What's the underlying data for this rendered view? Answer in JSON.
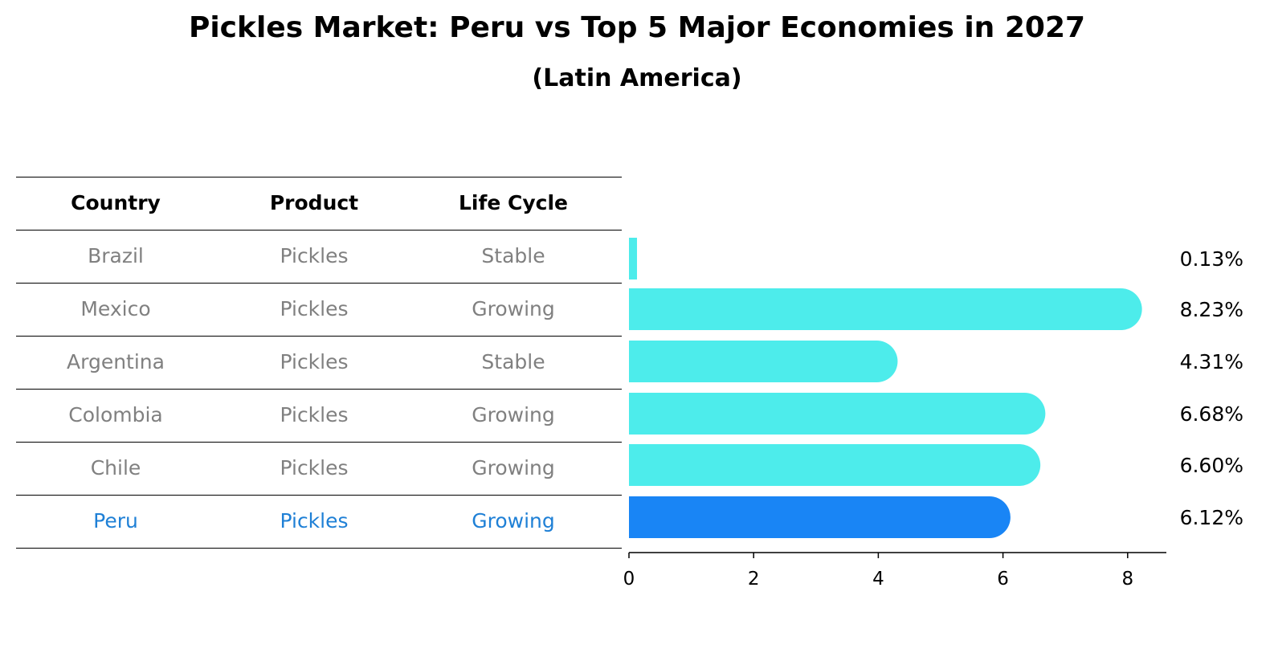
{
  "title": "Pickles Market: Peru vs Top 5 Major Economies in 2027",
  "subtitle": "(Latin America)",
  "table": {
    "headers": [
      "Country",
      "Product",
      "Life Cycle"
    ],
    "rows": [
      [
        "Brazil",
        "Pickles",
        "Stable"
      ],
      [
        "Mexico",
        "Pickles",
        "Growing"
      ],
      [
        "Argentina",
        "Pickles",
        "Stable"
      ],
      [
        "Colombia",
        "Pickles",
        "Growing"
      ],
      [
        "Chile",
        "Pickles",
        "Growing"
      ],
      [
        "Peru",
        "Pickles",
        "Growing"
      ]
    ],
    "highlight_row": 5
  },
  "chart_data": {
    "type": "bar",
    "orientation": "horizontal",
    "categories": [
      "Brazil",
      "Mexico",
      "Argentina",
      "Colombia",
      "Chile",
      "Peru"
    ],
    "values": [
      0.13,
      8.23,
      4.31,
      6.68,
      6.6,
      6.12
    ],
    "value_labels": [
      "0.13%",
      "8.23%",
      "4.31%",
      "6.68%",
      "6.60%",
      "6.12%"
    ],
    "highlight_index": 5,
    "colors": {
      "default": "#4deceb",
      "highlight": "#1985f5"
    },
    "xlim": [
      0,
      8.6
    ],
    "xticks": [
      0,
      2,
      4,
      6,
      8
    ],
    "xlabel": "",
    "ylabel": "",
    "grid": false
  },
  "colors": {
    "row_text": "#808080",
    "highlight_text": "#1f80d6"
  }
}
